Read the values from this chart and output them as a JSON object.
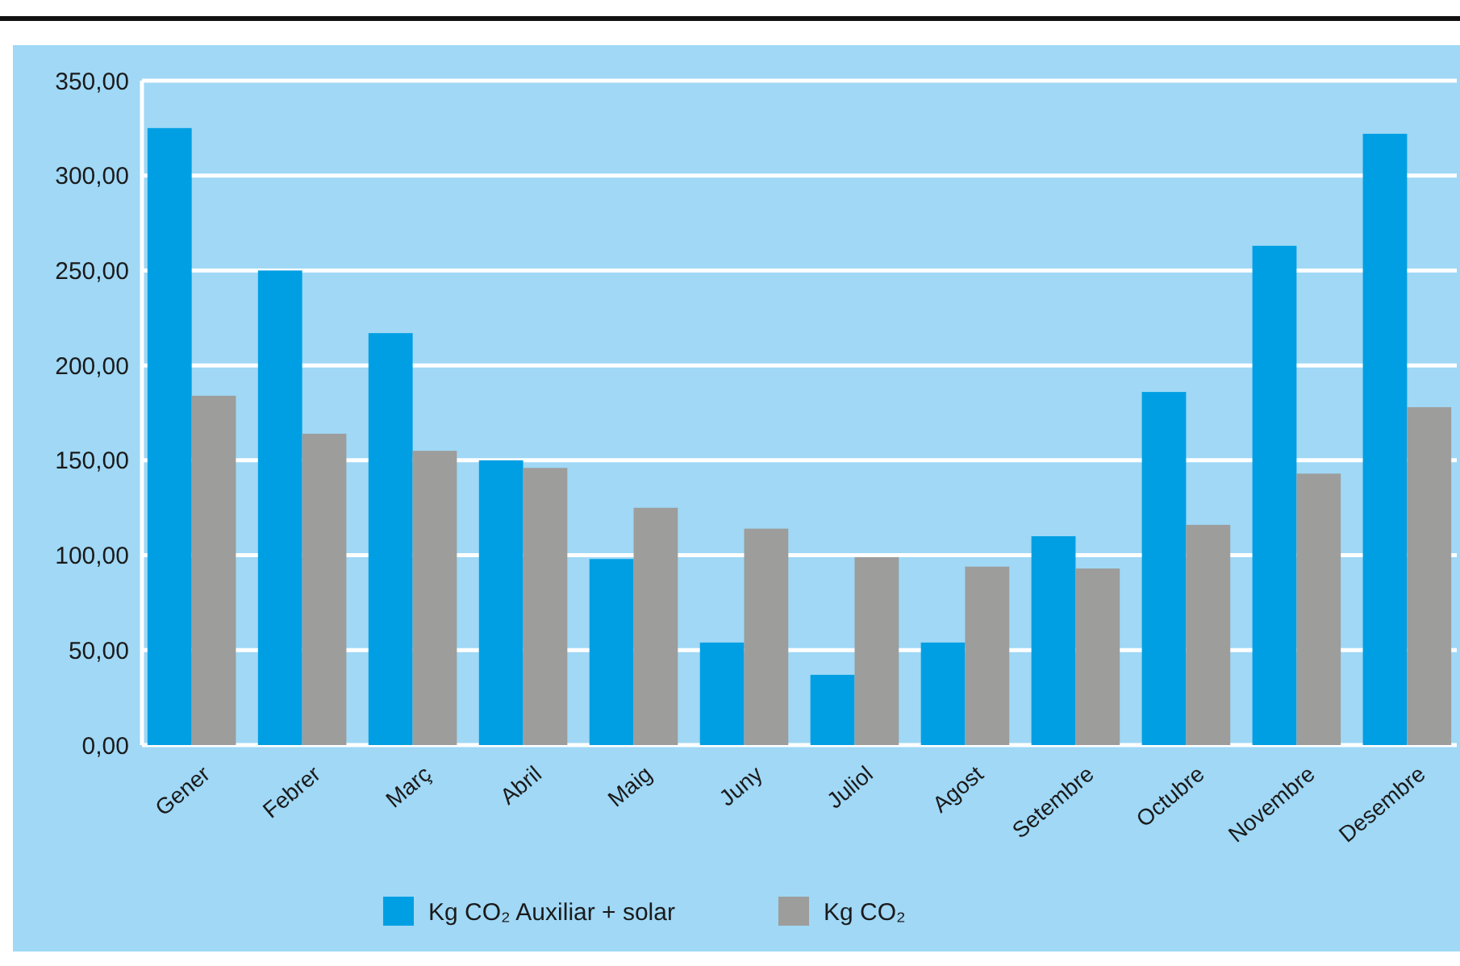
{
  "chart_data": {
    "type": "bar",
    "categories": [
      "Gener",
      "Febrer",
      "Març",
      "Abril",
      "Maig",
      "Juny",
      "Juliol",
      "Agost",
      "Setembre",
      "Octubre",
      "Novembre",
      "Desembre"
    ],
    "series": [
      {
        "name": "Kg CO₂ Auxiliar + solar",
        "color": "#009fe3",
        "values": [
          325,
          250,
          217,
          150,
          98,
          54,
          37,
          54,
          110,
          186,
          263,
          322
        ]
      },
      {
        "name": "Kg CO₂",
        "color": "#9d9d9c",
        "values": [
          184,
          164,
          155,
          146,
          125,
          114,
          99,
          94,
          93,
          116,
          143,
          178
        ]
      }
    ],
    "ylim": [
      0,
      350
    ],
    "yticks": [
      {
        "value": 0,
        "label": "0,00"
      },
      {
        "value": 50,
        "label": "50,00"
      },
      {
        "value": 100,
        "label": "100,00"
      },
      {
        "value": 150,
        "label": "150,00"
      },
      {
        "value": 200,
        "label": "200,00"
      },
      {
        "value": 250,
        "label": "250,00"
      },
      {
        "value": 300,
        "label": "300,00"
      },
      {
        "value": 350,
        "label": "350,00"
      }
    ],
    "grid": "y",
    "legend": "bottom"
  }
}
